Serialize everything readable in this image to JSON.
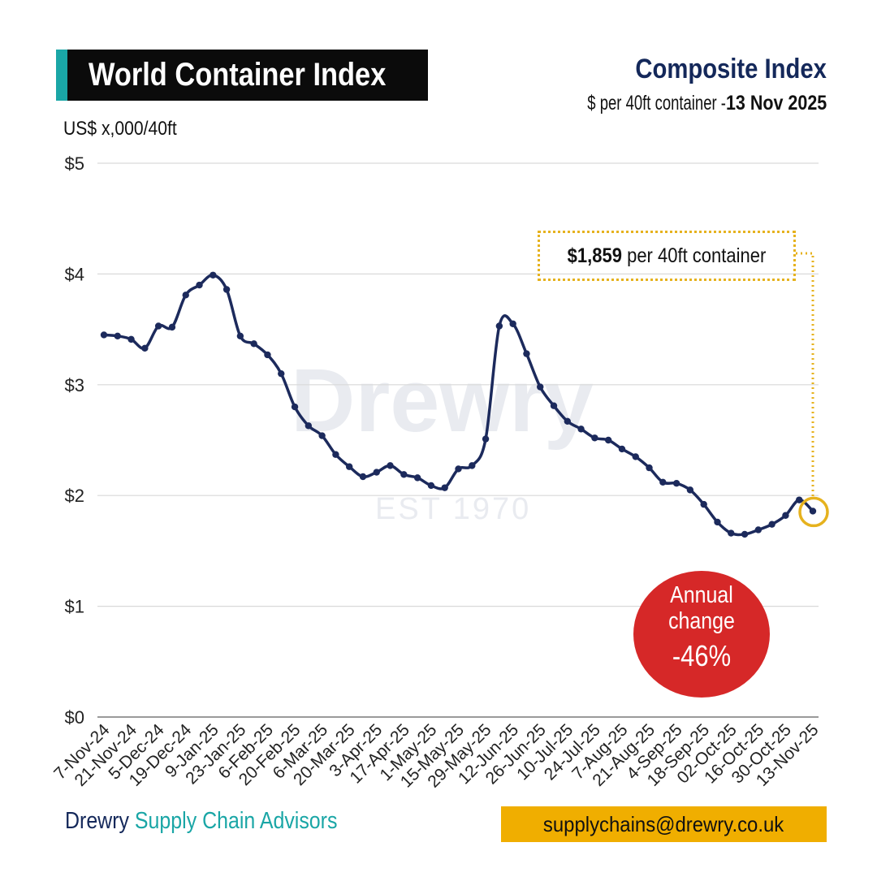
{
  "header": {
    "title": "World Container Index",
    "composite_title": "Composite Index",
    "subtitle_prefix": "$ per 40ft container - ",
    "subtitle_date": "13 Nov 2025",
    "unit_label": "US$ x,000/40ft"
  },
  "callout": {
    "value": "$1,859",
    "suffix": " per 40ft container"
  },
  "badge": {
    "line1": "Annual",
    "line2": "change",
    "value": "-46%"
  },
  "watermark": {
    "name": "Drewry",
    "est": "EST 1970"
  },
  "footer": {
    "brand": "Drewry",
    "brand_rest": " Supply Chain Advisors",
    "email": "supplychains@drewry.co.uk"
  },
  "colors": {
    "line": "#1c2a5c",
    "accent_teal": "#1aa6a6",
    "callout_gold": "#e6b21e",
    "badge_red": "#d62828",
    "grid": "#d9d9d9"
  },
  "chart_data": {
    "type": "line",
    "ylabel": "US$ x,000/40ft",
    "ylim": [
      0,
      5
    ],
    "y_ticks": [
      0,
      1,
      2,
      3,
      4,
      5
    ],
    "y_tick_labels": [
      "$0",
      "$1",
      "$2",
      "$3",
      "$4",
      "$5"
    ],
    "x_tick_labels": [
      "7-Nov-24",
      "21-Nov-24",
      "5-Dec-24",
      "19-Dec-24",
      "9-Jan-25",
      "23-Jan-25",
      "6-Feb-25",
      "20-Feb-25",
      "6-Mar-25",
      "20-Mar-25",
      "3-Apr-25",
      "17-Apr-25",
      "1-May-25",
      "15-May-25",
      "29-May-25",
      "12-Jun-25",
      "26-Jun-25",
      "10-Jul-25",
      "24-Jul-25",
      "7-Aug-25",
      "21-Aug-25",
      "4-Sep-25",
      "18-Sep-25",
      "02-Oct-25",
      "16-Oct-25",
      "30-Oct-25",
      "13-Nov-25"
    ],
    "grid": true,
    "series": [
      {
        "values": [
          3.45,
          3.44,
          3.41,
          3.33,
          3.53,
          3.52,
          3.81,
          3.9,
          3.99,
          3.86,
          3.44,
          3.37,
          3.27,
          3.1,
          2.8,
          2.63,
          2.54,
          2.37,
          2.26,
          2.17,
          2.21,
          2.27,
          2.19,
          2.16,
          2.09,
          2.07,
          2.24,
          2.27,
          2.51,
          3.53,
          3.55,
          3.28,
          2.98,
          2.81,
          2.67,
          2.6,
          2.52,
          2.5,
          2.42,
          2.35,
          2.25,
          2.12,
          2.11,
          2.05,
          1.92,
          1.76,
          1.66,
          1.65,
          1.69,
          1.74,
          1.82,
          1.96,
          1.859
        ]
      }
    ]
  }
}
